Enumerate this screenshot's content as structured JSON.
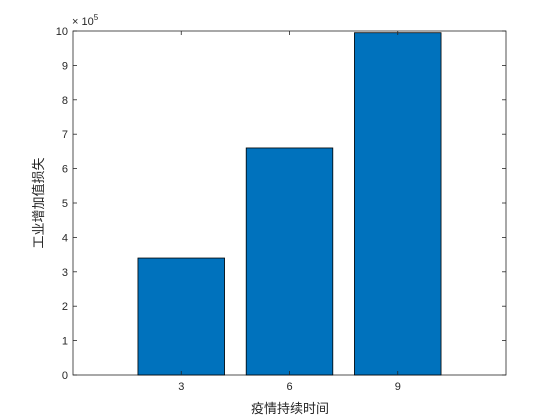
{
  "chart_data": {
    "type": "bar",
    "categories": [
      "3",
      "6",
      "9"
    ],
    "x": [
      3,
      6,
      9
    ],
    "values": [
      340000,
      660000,
      995000
    ],
    "xlabel": "疫情持续时间",
    "ylabel": "工业增加值损失",
    "xlim": [
      0,
      12
    ],
    "ylim": [
      0,
      1000000
    ],
    "x_ticks": [
      "3",
      "6",
      "9"
    ],
    "y_ticks": [
      "0",
      "1",
      "2",
      "3",
      "4",
      "5",
      "6",
      "7",
      "8",
      "9",
      "10"
    ],
    "y_multiplier_base": "× 10",
    "y_multiplier_exponent": "5",
    "bar_color": "#0072BD",
    "grid": false,
    "legend": "none"
  }
}
